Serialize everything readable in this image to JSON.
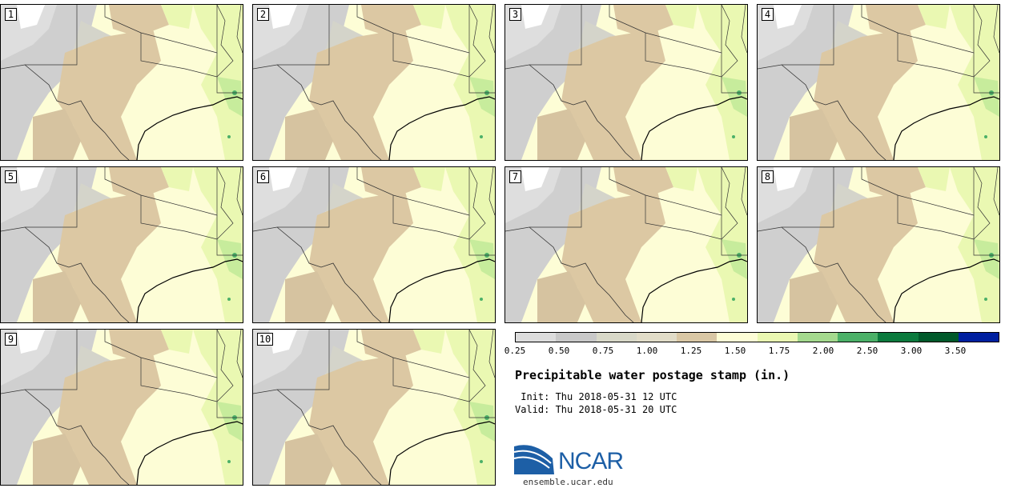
{
  "panels": [
    {
      "label": "1"
    },
    {
      "label": "2"
    },
    {
      "label": "3"
    },
    {
      "label": "4"
    },
    {
      "label": "5"
    },
    {
      "label": "6"
    },
    {
      "label": "7"
    },
    {
      "label": "8"
    },
    {
      "label": "9"
    },
    {
      "label": "10"
    }
  ],
  "colorbar": {
    "colors": [
      "#dcdcdc",
      "#c8c8c8",
      "#d8d8c8",
      "#e1dcc8",
      "#d9c7a5",
      "#fdfdd6",
      "#eaf8b2",
      "#a4d98e",
      "#4bb068",
      "#0b7a3e",
      "#00592b",
      "#0020a0"
    ],
    "ticks": [
      "0.25",
      "0.50",
      "0.75",
      "1.00",
      "1.25",
      "1.50",
      "1.75",
      "2.00",
      "2.50",
      "3.00",
      "3.50"
    ]
  },
  "title": "Precipitable water postage stamp (in.)",
  "init_line": " Init: Thu 2018-05-31 12 UTC",
  "valid_line": "Valid: Thu 2018-05-31 20 UTC",
  "logo_text": "NCAR",
  "site": "ensemble.ucar.edu"
}
